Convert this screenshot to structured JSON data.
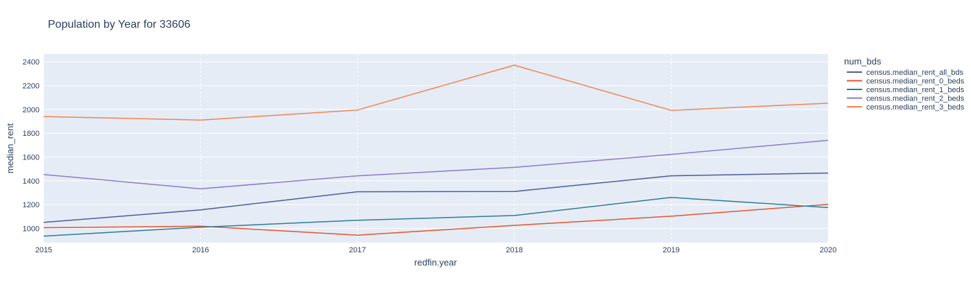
{
  "chart_data": {
    "type": "line",
    "title": "Population by Year for 33606",
    "xlabel": "redfin.year",
    "ylabel": "median_rent",
    "x": [
      2015,
      2016,
      2017,
      2018,
      2019,
      2020
    ],
    "x_tick_labels": [
      "2015",
      "2016",
      "2017",
      "2018",
      "2019",
      "2020"
    ],
    "xlim": [
      2015,
      2020
    ],
    "ylim": [
      880,
      2465
    ],
    "y_ticks": [
      1000,
      1200,
      1400,
      1600,
      1800,
      2000,
      2200,
      2400
    ],
    "y_tick_labels": [
      "1000",
      "1200",
      "1400",
      "1600",
      "1800",
      "2000",
      "2200",
      "2400"
    ],
    "grid": true,
    "legend_title": "num_bds",
    "legend_position": "right",
    "plot_background": "#e5ecf6",
    "series": [
      {
        "name": "census.median_rent_all_bds",
        "color": "#4c5b9c",
        "values": [
          1050,
          1155,
          1308,
          1310,
          1442,
          1465
        ]
      },
      {
        "name": "census.median_rent_0_beds",
        "color": "#e2542f",
        "values": [
          1005,
          1018,
          943,
          1025,
          1102,
          1202
        ]
      },
      {
        "name": "census.median_rent_1_beds",
        "color": "#2f7a96",
        "values": [
          935,
          1010,
          1068,
          1108,
          1260,
          1175
        ]
      },
      {
        "name": "census.median_rent_2_beds",
        "color": "#8c7ac8",
        "values": [
          1453,
          1332,
          1442,
          1513,
          1622,
          1740
        ]
      },
      {
        "name": "census.median_rent_3_beds",
        "color": "#f2834e",
        "values": [
          1940,
          1910,
          1995,
          2372,
          1992,
          2052
        ]
      }
    ]
  }
}
